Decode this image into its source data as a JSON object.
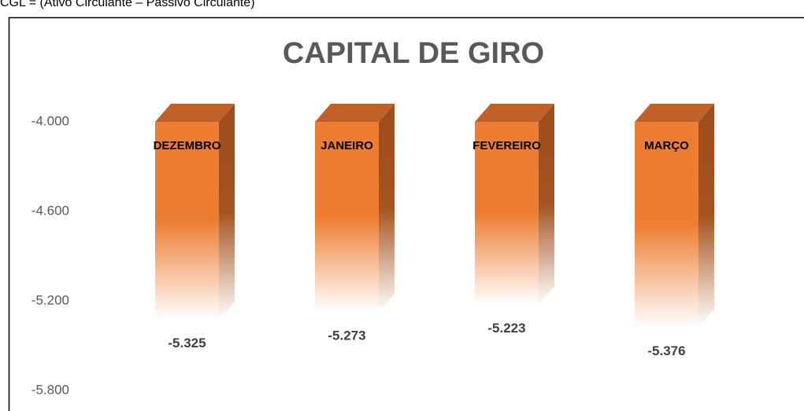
{
  "caption": "CGL = (Ativo Circulante – Passivo Circulante)",
  "chart_data": {
    "type": "bar3d",
    "title": "CAPITAL DE GIRO",
    "categories": [
      "DEZEMBRO",
      "JANEIRO",
      "FEVEREIRO",
      "MARÇO"
    ],
    "values": [
      -5325,
      -5273,
      -5223,
      -5376
    ],
    "value_labels": [
      "-5.325",
      "-5.273",
      "-5.223",
      "-5.376"
    ],
    "color": "#ed7d31",
    "ylim": [
      -5800,
      -4000
    ],
    "yticks": [
      {
        "value": -4000,
        "label": "-4.000"
      },
      {
        "value": -4600,
        "label": "-4.600"
      },
      {
        "value": -5200,
        "label": "-5.200"
      },
      {
        "value": -5800,
        "label": "-5.800"
      }
    ]
  }
}
